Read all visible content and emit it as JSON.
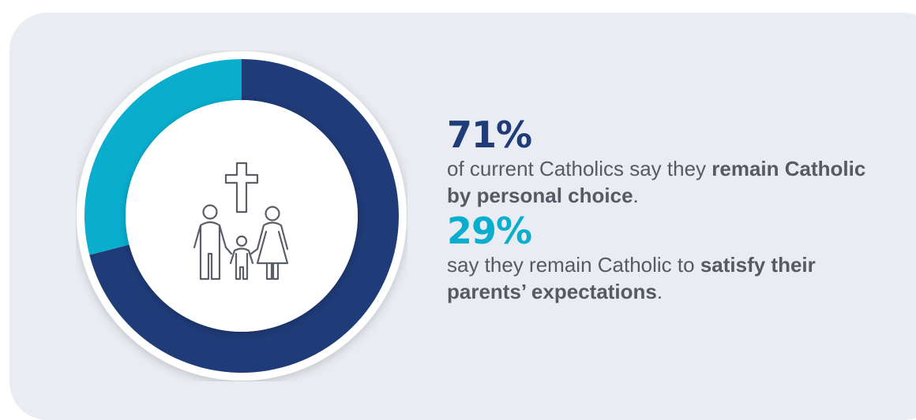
{
  "colors": {
    "background_card": "#e9ecf2",
    "primary": "#1f3b78",
    "secondary": "#09aecf",
    "text": "#555a63"
  },
  "chart_data": {
    "type": "pie",
    "categories": [
      "remain Catholic by personal choice",
      "satisfy their parents' expectations"
    ],
    "values": [
      71,
      29
    ],
    "colors": [
      "#1f3b78",
      "#09aecf"
    ],
    "center_icon": "family-cross-icon"
  },
  "stats": [
    {
      "value": "71%",
      "text_before": "of current Catholics say they ",
      "text_bold": "remain Catholic by personal choice",
      "text_after": "."
    },
    {
      "value": "29%",
      "text_before": "say they remain Catholic to ",
      "text_bold": "satisfy their parents’ expectations",
      "text_after": "."
    }
  ]
}
